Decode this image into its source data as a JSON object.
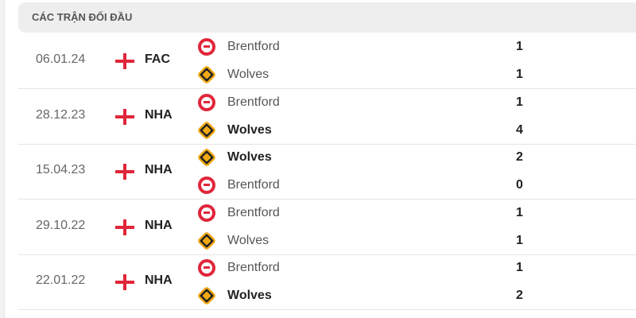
{
  "header": {
    "title": "CÁC TRẬN ĐỐI ĐẦU"
  },
  "matches": [
    {
      "date": "06.01.24",
      "competition": "FAC",
      "teams": [
        {
          "name": "Brentford",
          "logo": "brentford",
          "score": "1",
          "winner": false
        },
        {
          "name": "Wolves",
          "logo": "wolves",
          "score": "1",
          "winner": false
        }
      ]
    },
    {
      "date": "28.12.23",
      "competition": "NHA",
      "teams": [
        {
          "name": "Brentford",
          "logo": "brentford",
          "score": "1",
          "winner": false
        },
        {
          "name": "Wolves",
          "logo": "wolves",
          "score": "4",
          "winner": true
        }
      ]
    },
    {
      "date": "15.04.23",
      "competition": "NHA",
      "teams": [
        {
          "name": "Wolves",
          "logo": "wolves",
          "score": "2",
          "winner": true
        },
        {
          "name": "Brentford",
          "logo": "brentford",
          "score": "0",
          "winner": false
        }
      ]
    },
    {
      "date": "29.10.22",
      "competition": "NHA",
      "teams": [
        {
          "name": "Brentford",
          "logo": "brentford",
          "score": "1",
          "winner": false
        },
        {
          "name": "Wolves",
          "logo": "wolves",
          "score": "1",
          "winner": false
        }
      ]
    },
    {
      "date": "22.01.22",
      "competition": "NHA",
      "teams": [
        {
          "name": "Brentford",
          "logo": "brentford",
          "score": "1",
          "winner": false
        },
        {
          "name": "Wolves",
          "logo": "wolves",
          "score": "2",
          "winner": true
        }
      ]
    }
  ],
  "colors": {
    "england_flag": "#e0263a",
    "header_bg": "#eeeeee"
  }
}
